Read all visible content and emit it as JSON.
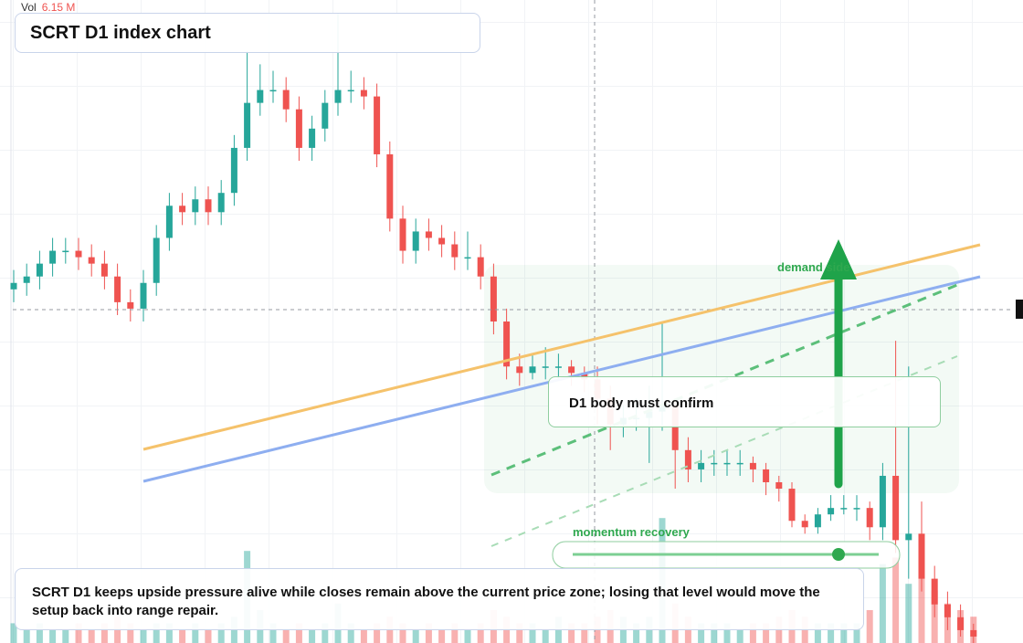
{
  "chart_data": {
    "type": "candlestick",
    "title": "SCRT D1 index chart",
    "volume_name": "Vol",
    "volume_readout": "6.15 M",
    "up_color": "#26a69a",
    "down_color": "#ef5350",
    "ylim": [
      0,
      100
    ],
    "volume_lim": [
      0,
      20
    ],
    "open": [
      55,
      56,
      57,
      59,
      61,
      61,
      60,
      59,
      57,
      53,
      52,
      56,
      63,
      68,
      67,
      69,
      67,
      70,
      77,
      84,
      86,
      86,
      83,
      77,
      80,
      84,
      86,
      86,
      85,
      76,
      66,
      61,
      64,
      63,
      62,
      60,
      60,
      57,
      50,
      43,
      42,
      43,
      43,
      43,
      42,
      41,
      38,
      34,
      35,
      35,
      36,
      37,
      30,
      27,
      28,
      28,
      28,
      28,
      27,
      25,
      24,
      19,
      18,
      20,
      21,
      21,
      21,
      18,
      26,
      16,
      17,
      10,
      6,
      4,
      2
    ],
    "high": [
      58,
      59,
      61,
      63,
      63,
      63,
      62,
      61,
      59,
      55,
      58,
      65,
      70,
      70,
      71,
      71,
      72,
      79,
      92,
      90,
      89,
      88,
      85,
      82,
      86,
      98,
      89,
      88,
      87,
      78,
      68,
      66,
      66,
      65,
      64,
      64,
      62,
      59,
      52,
      45,
      45,
      46,
      45,
      44,
      43,
      43,
      40,
      37,
      38,
      40,
      50,
      38,
      32,
      30,
      30,
      30,
      30,
      29,
      28,
      26,
      25,
      20,
      21,
      23,
      23,
      23,
      22,
      28,
      47,
      43,
      22,
      12,
      8,
      6,
      3
    ],
    "low": [
      53,
      54,
      55,
      57,
      59,
      58,
      57,
      55,
      51,
      50,
      50,
      54,
      61,
      65,
      65,
      65,
      65,
      68,
      75,
      82,
      84,
      81,
      75,
      75,
      78,
      82,
      84,
      83,
      74,
      64,
      59,
      59,
      61,
      60,
      58,
      58,
      55,
      48,
      41,
      40,
      41,
      41,
      41,
      40,
      39,
      34,
      30,
      32,
      33,
      28,
      33,
      24,
      25,
      25,
      26,
      26,
      26,
      25,
      23,
      22,
      18,
      17,
      17,
      19,
      20,
      19,
      16,
      16,
      14,
      10,
      8,
      4,
      2,
      1,
      0
    ],
    "close": [
      56,
      57,
      59,
      61,
      61,
      60,
      59,
      57,
      53,
      52,
      56,
      63,
      68,
      67,
      69,
      67,
      70,
      77,
      84,
      86,
      86,
      83,
      77,
      80,
      84,
      86,
      86,
      85,
      76,
      66,
      61,
      64,
      63,
      62,
      60,
      60,
      57,
      50,
      43,
      42,
      43,
      43,
      43,
      42,
      41,
      38,
      34,
      35,
      35,
      36,
      37,
      30,
      27,
      28,
      28,
      28,
      28,
      27,
      25,
      24,
      19,
      18,
      20,
      21,
      21,
      21,
      18,
      26,
      16,
      17,
      10,
      6,
      4,
      2,
      1
    ],
    "volume": [
      3,
      2,
      3,
      2,
      2,
      3,
      2,
      3,
      4,
      3,
      2,
      3,
      3,
      2,
      3,
      2,
      3,
      4,
      14,
      5,
      3,
      2,
      3,
      2,
      3,
      6,
      3,
      2,
      3,
      4,
      3,
      2,
      3,
      2,
      3,
      2,
      3,
      5,
      4,
      3,
      3,
      2,
      4,
      3,
      3,
      4,
      5,
      4,
      3,
      4,
      19,
      6,
      4,
      3,
      3,
      3,
      2,
      3,
      3,
      4,
      5,
      4,
      3,
      3,
      3,
      3,
      5,
      12,
      13,
      9,
      10,
      8,
      6,
      5,
      4
    ],
    "annotations": {
      "demand": "demand side",
      "confirm": "D1 body must confirm",
      "momentum": "momentum recovery"
    },
    "caption": "SCRT D1 keeps upside pressure alive while closes remain above the current price zone; losing that level would move the setup back into range repair."
  }
}
